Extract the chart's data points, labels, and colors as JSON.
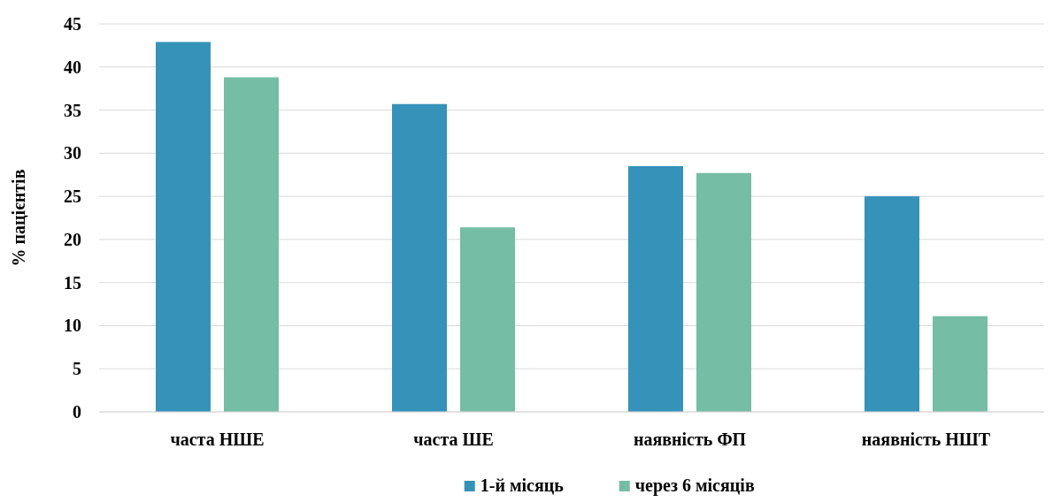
{
  "chart_data": {
    "type": "bar",
    "ylabel": "% пацієнтів",
    "categories": [
      "часта НШЕ",
      "часта ШЕ",
      "наявність ФП",
      "наявність НШТ"
    ],
    "series": [
      {
        "name": "1-й місяць",
        "color": "#3592b9",
        "values": [
          42.9,
          35.7,
          28.5,
          25.0
        ]
      },
      {
        "name": "через 6 місяців",
        "color": "#75bda5",
        "values": [
          38.8,
          21.4,
          27.7,
          11.1
        ]
      }
    ],
    "ylim": [
      0,
      45
    ],
    "yticks": [
      0,
      5,
      10,
      15,
      20,
      25,
      30,
      35,
      40,
      45
    ],
    "grid": "y",
    "legend": "bottom"
  }
}
